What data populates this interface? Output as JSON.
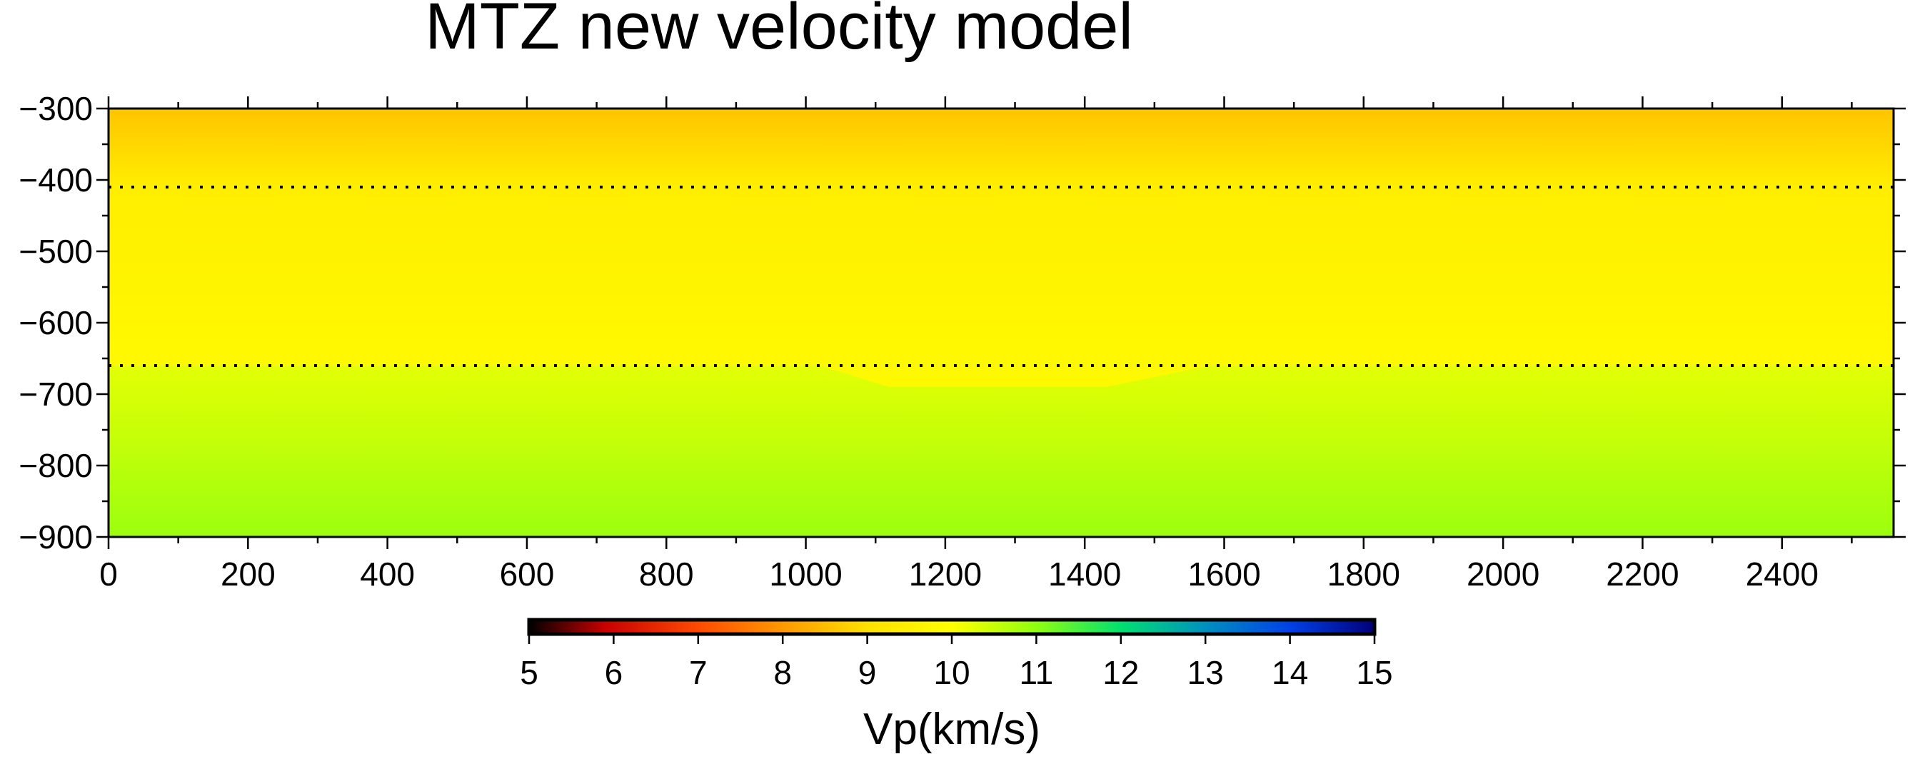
{
  "chart_data": {
    "type": "heatmap",
    "title": "MTZ new velocity model",
    "xlabel": "",
    "ylabel": "",
    "xlim": [
      0,
      2560
    ],
    "ylim": [
      -900,
      -300
    ],
    "x_ticks": [
      0,
      200,
      400,
      600,
      800,
      1000,
      1200,
      1400,
      1600,
      1800,
      2000,
      2200,
      2400
    ],
    "x_tick_labels": [
      "0",
      "200",
      "400",
      "600",
      "800",
      "1000",
      "1200",
      "1400",
      "1600",
      "1800",
      "2000",
      "2200",
      "2400"
    ],
    "y_ticks": [
      -300,
      -400,
      -500,
      -600,
      -700,
      -800,
      -900
    ],
    "y_tick_labels": [
      "−300",
      "−400",
      "−500",
      "−600",
      "−700",
      "−800",
      "−900"
    ],
    "dotted_lines": [
      -410,
      -660
    ],
    "velocity_profile": [
      {
        "depth": -300,
        "vp": 8.6
      },
      {
        "depth": -410,
        "vp": 9.45
      },
      {
        "depth": -660,
        "vp": 9.8
      },
      {
        "depth": -661,
        "vp": 10.25
      },
      {
        "depth": -900,
        "vp": 10.9
      }
    ],
    "anomaly_660": {
      "x": [
        1020,
        1120,
        1430,
        1580
      ],
      "y": [
        -660,
        -690,
        -690,
        -660
      ],
      "vp": 9.8
    },
    "colorbar": {
      "label": "Vp(km/s)",
      "min": 5,
      "max": 15,
      "ticks": [
        5,
        6,
        7,
        8,
        9,
        10,
        11,
        12,
        13,
        14,
        15
      ],
      "tick_labels": [
        "5",
        "6",
        "7",
        "8",
        "9",
        "10",
        "11",
        "12",
        "13",
        "14",
        "15"
      ],
      "colormap": [
        {
          "v": 5,
          "color": "#000000"
        },
        {
          "v": 5.9,
          "color": "#c80000"
        },
        {
          "v": 7,
          "color": "#ff4a00"
        },
        {
          "v": 8,
          "color": "#ff9900"
        },
        {
          "v": 9,
          "color": "#ffe100"
        },
        {
          "v": 10,
          "color": "#ffff00"
        },
        {
          "v": 11,
          "color": "#90ff10"
        },
        {
          "v": 12,
          "color": "#00e070"
        },
        {
          "v": 13,
          "color": "#0090c0"
        },
        {
          "v": 14,
          "color": "#0040e8"
        },
        {
          "v": 15,
          "color": "#00007a"
        }
      ]
    }
  }
}
